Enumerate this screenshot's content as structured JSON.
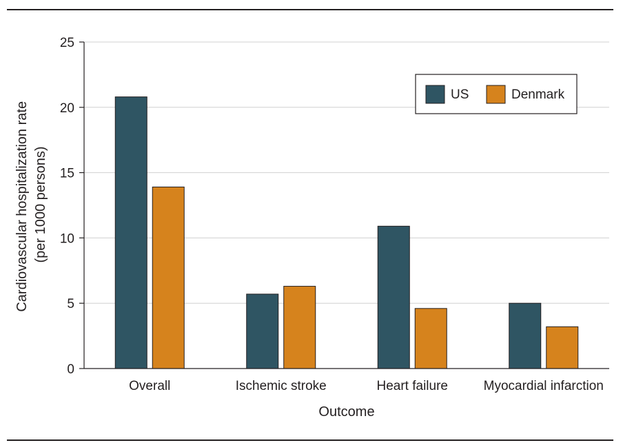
{
  "chart_data": {
    "type": "bar",
    "categories": [
      "Overall",
      "Ischemic stroke",
      "Heart failure",
      "Myocardial infarction"
    ],
    "series": [
      {
        "name": "US",
        "color": "#2f5563",
        "values": [
          20.8,
          5.7,
          10.9,
          5.0
        ]
      },
      {
        "name": "Denmark",
        "color": "#d6831d",
        "values": [
          13.9,
          6.3,
          4.6,
          3.2
        ]
      }
    ],
    "xlabel": "Outcome",
    "ylabel_line1": "Cardiovascular hospitalization rate",
    "ylabel_line2": "(per 1000 persons)",
    "ylim": [
      0,
      25
    ],
    "yticks": [
      0,
      5,
      10,
      15,
      20,
      25
    ],
    "grid": true,
    "legend_position": "top-right"
  }
}
